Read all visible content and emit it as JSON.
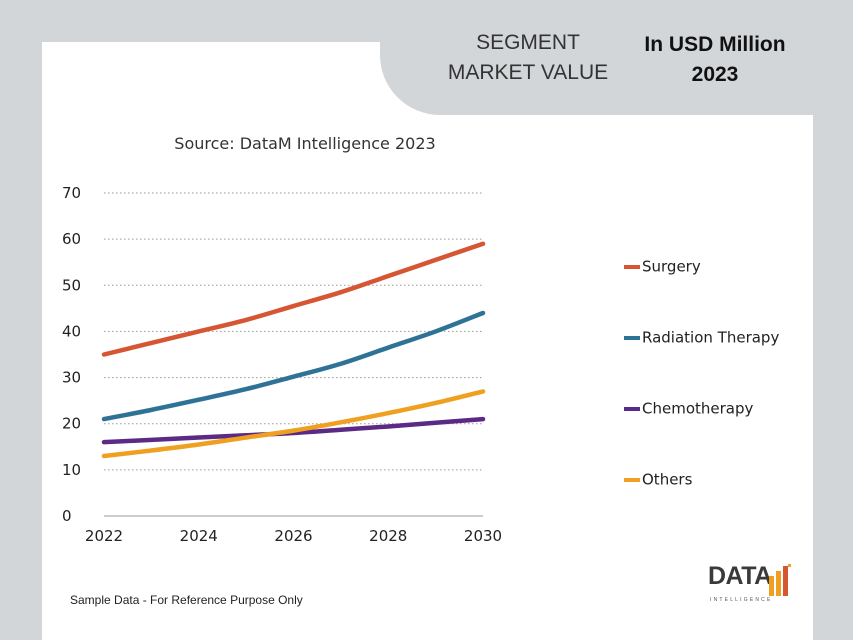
{
  "header": {
    "segment_title_line1": "SEGMENT",
    "segment_title_line2": "MARKET VALUE",
    "unit_line1": "In USD Million",
    "unit_line2": "2023"
  },
  "chart_data": {
    "type": "line",
    "title": "Source: DataM Intelligence 2023",
    "xlabel": "",
    "ylabel": "",
    "x": [
      2022,
      2023,
      2024,
      2025,
      2026,
      2027,
      2028,
      2029,
      2030
    ],
    "xticks": [
      "2022",
      "2024",
      "2026",
      "2028",
      "2030"
    ],
    "yticks": [
      "0",
      "10",
      "20",
      "30",
      "40",
      "50",
      "60",
      "70"
    ],
    "xlim": [
      2022,
      2030
    ],
    "ylim": [
      0,
      70
    ],
    "grid": "horizontal dotted",
    "legend_position": "right",
    "series": [
      {
        "name": "Surgery",
        "color": "#d65532",
        "values": [
          35,
          37.5,
          40,
          42.5,
          45.5,
          48.5,
          52,
          55.5,
          59
        ]
      },
      {
        "name": "Radiation Therapy",
        "color": "#2e7396",
        "values": [
          21,
          23,
          25.2,
          27.5,
          30.2,
          33,
          36.5,
          40,
          44
        ]
      },
      {
        "name": "Chemotherapy",
        "color": "#5b2a86",
        "values": [
          16,
          16.5,
          17,
          17.5,
          18,
          18.7,
          19.4,
          20.2,
          21
        ]
      },
      {
        "name": "Others",
        "color": "#f0a020",
        "values": [
          13,
          14.2,
          15.5,
          17,
          18.5,
          20.3,
          22.3,
          24.5,
          27
        ]
      }
    ]
  },
  "footnote": "Sample Data - For Reference Purpose Only",
  "logo": {
    "main": "DATA",
    "sub": "INTELLIGENCE"
  },
  "colors": {
    "background": "#d3d6d9",
    "card": "#ffffff"
  }
}
